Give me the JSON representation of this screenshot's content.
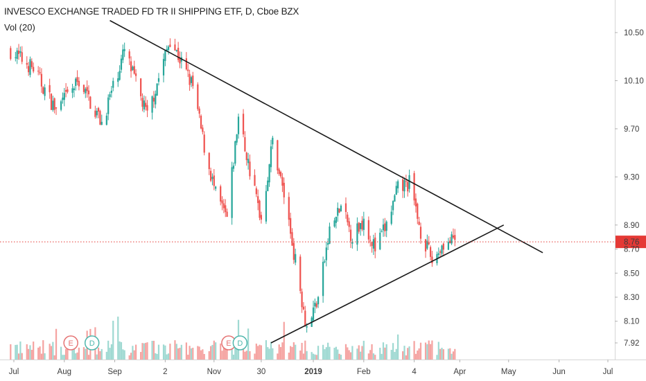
{
  "header": {
    "title": "INVESCO EXCHANGE TRADED FD TR II SHIPPING ETF, D, Cboe BZX",
    "volume_label": "Vol (20)"
  },
  "colors": {
    "up": "#26a69a",
    "down": "#ef5350",
    "vol_up": "#9fd9d2",
    "vol_down": "#f5a3a1",
    "trendline": "#1a1a1a",
    "last_price": "#e53935"
  },
  "chart_data": {
    "type": "candlestick",
    "title": "INVESCO EXCHANGE TRADED FD TR II SHIPPING ETF, D, Cboe BZX",
    "y_ticks": [
      "10.50",
      "10.10",
      "9.70",
      "9.30",
      "8.90",
      "8.70",
      "8.50",
      "8.30",
      "8.10",
      "7.92"
    ],
    "ylim": [
      7.86,
      10.7
    ],
    "x_ticks": [
      {
        "label": "Jul",
        "date": "2018-07-01",
        "bold": false
      },
      {
        "label": "Aug",
        "date": "2018-08-01",
        "bold": false
      },
      {
        "label": "Sep",
        "date": "2018-09-01",
        "bold": false
      },
      {
        "label": "2",
        "date": "2018-10-02",
        "bold": false
      },
      {
        "label": "Nov",
        "date": "2018-11-01",
        "bold": false
      },
      {
        "label": "30",
        "date": "2018-11-30",
        "bold": false
      },
      {
        "label": "2019",
        "date": "2019-01-01",
        "bold": true
      },
      {
        "label": "Feb",
        "date": "2019-02-01",
        "bold": false
      },
      {
        "label": "4",
        "date": "2019-03-04",
        "bold": false
      },
      {
        "label": "Apr",
        "date": "2019-04-01",
        "bold": false
      },
      {
        "label": "May",
        "date": "2019-05-01",
        "bold": false
      },
      {
        "label": "Jun",
        "date": "2019-06-01",
        "bold": false
      },
      {
        "label": "Jul",
        "date": "2019-07-01",
        "bold": false
      }
    ],
    "last_price": 8.76,
    "last_price_label": "8.76",
    "grid": false,
    "price_series": [
      {
        "date": "2018-06-29",
        "close": 10.35
      },
      {
        "date": "2018-07-13",
        "close": 10.2
      },
      {
        "date": "2018-07-27",
        "close": 9.85
      },
      {
        "date": "2018-08-10",
        "close": 10.1
      },
      {
        "date": "2018-08-24",
        "close": 9.75
      },
      {
        "date": "2018-09-07",
        "close": 10.35
      },
      {
        "date": "2018-09-21",
        "close": 9.8
      },
      {
        "date": "2018-10-05",
        "close": 10.45
      },
      {
        "date": "2018-10-19",
        "close": 10.05
      },
      {
        "date": "2018-10-26",
        "close": 9.55
      },
      {
        "date": "2018-11-02",
        "close": 9.15
      },
      {
        "date": "2018-11-09",
        "close": 8.95
      },
      {
        "date": "2018-11-16",
        "close": 9.8
      },
      {
        "date": "2018-11-23",
        "close": 9.35
      },
      {
        "date": "2018-11-30",
        "close": 8.95
      },
      {
        "date": "2018-12-07",
        "close": 9.6
      },
      {
        "date": "2018-12-14",
        "close": 9.15
      },
      {
        "date": "2018-12-21",
        "close": 8.6
      },
      {
        "date": "2018-12-28",
        "close": 8.05
      },
      {
        "date": "2019-01-04",
        "close": 8.3
      },
      {
        "date": "2019-01-11",
        "close": 8.85
      },
      {
        "date": "2019-01-18",
        "close": 9.05
      },
      {
        "date": "2019-01-25",
        "close": 8.8
      },
      {
        "date": "2019-02-01",
        "close": 8.95
      },
      {
        "date": "2019-02-08",
        "close": 8.7
      },
      {
        "date": "2019-02-15",
        "close": 8.9
      },
      {
        "date": "2019-02-22",
        "close": 9.2
      },
      {
        "date": "2019-03-01",
        "close": 9.25
      },
      {
        "date": "2019-03-08",
        "close": 8.85
      },
      {
        "date": "2019-03-15",
        "close": 8.6
      },
      {
        "date": "2019-03-22",
        "close": 8.75
      },
      {
        "date": "2019-03-29",
        "close": 8.76
      }
    ],
    "trendlines": [
      {
        "name": "upper",
        "start": {
          "date": "2018-08-29",
          "price": 10.6
        },
        "end": {
          "date": "2019-05-22",
          "price": 8.67
        }
      },
      {
        "name": "lower",
        "start": {
          "date": "2018-12-06",
          "price": 7.92
        },
        "end": {
          "date": "2019-04-28",
          "price": 8.9
        }
      }
    ],
    "event_badges": [
      {
        "letter": "E",
        "date": "2018-08-05"
      },
      {
        "letter": "D",
        "date": "2018-08-18"
      },
      {
        "letter": "E",
        "date": "2018-11-10"
      },
      {
        "letter": "D",
        "date": "2018-11-17"
      }
    ]
  }
}
